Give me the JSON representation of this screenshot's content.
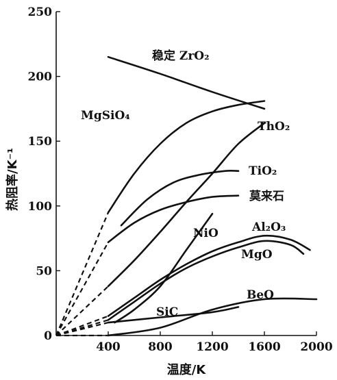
{
  "chart_data": {
    "type": "line",
    "xlabel": "温度/K",
    "ylabel": "热阻率/K⁻¹",
    "xlim": [
      0,
      2000
    ],
    "ylim": [
      0,
      250
    ],
    "x_ticks": [
      400,
      800,
      1200,
      1600,
      2000
    ],
    "y_ticks": [
      0,
      50,
      100,
      150,
      200,
      250
    ],
    "grid": false,
    "legend": "none (labels placed beside curves)",
    "series": [
      {
        "name": "稳定 ZrO₂",
        "points": [
          [
            400,
            215
          ],
          [
            800,
            202
          ],
          [
            1200,
            188
          ],
          [
            1600,
            175
          ]
        ],
        "dashed_extrapolation": []
      },
      {
        "name": "MgSiO₄",
        "points": [
          [
            400,
            95
          ],
          [
            600,
            125
          ],
          [
            800,
            148
          ],
          [
            1000,
            164
          ],
          [
            1200,
            173
          ],
          [
            1400,
            178
          ],
          [
            1600,
            181
          ]
        ],
        "dashed_extrapolation": [
          [
            0,
            0
          ],
          [
            400,
            95
          ]
        ]
      },
      {
        "name": "ThO₂",
        "points": [
          [
            400,
            38
          ],
          [
            600,
            58
          ],
          [
            800,
            80
          ],
          [
            1000,
            103
          ],
          [
            1200,
            125
          ],
          [
            1400,
            148
          ],
          [
            1600,
            164
          ]
        ],
        "dashed_extrapolation": [
          [
            0,
            0
          ],
          [
            400,
            38
          ]
        ]
      },
      {
        "name": "TiO₂",
        "points": [
          [
            500,
            85
          ],
          [
            700,
            105
          ],
          [
            900,
            118
          ],
          [
            1100,
            124
          ],
          [
            1300,
            127
          ],
          [
            1400,
            127
          ]
        ],
        "dashed_extrapolation": []
      },
      {
        "name": "莫来石",
        "points": [
          [
            400,
            72
          ],
          [
            600,
            87
          ],
          [
            800,
            97
          ],
          [
            1000,
            103
          ],
          [
            1200,
            107
          ],
          [
            1400,
            108
          ]
        ],
        "dashed_extrapolation": [
          [
            0,
            0
          ],
          [
            400,
            72
          ]
        ]
      },
      {
        "name": "NiO",
        "points": [
          [
            450,
            10
          ],
          [
            600,
            20
          ],
          [
            800,
            38
          ],
          [
            1000,
            66
          ],
          [
            1200,
            94
          ]
        ],
        "dashed_extrapolation": []
      },
      {
        "name": "Al₂O₃",
        "points": [
          [
            400,
            15
          ],
          [
            600,
            29
          ],
          [
            800,
            43
          ],
          [
            1000,
            55
          ],
          [
            1200,
            65
          ],
          [
            1400,
            72
          ],
          [
            1600,
            77
          ],
          [
            1800,
            74
          ],
          [
            1950,
            66
          ]
        ],
        "dashed_extrapolation": [
          [
            0,
            0
          ],
          [
            400,
            15
          ]
        ]
      },
      {
        "name": "MgO",
        "points": [
          [
            400,
            12
          ],
          [
            600,
            26
          ],
          [
            800,
            40
          ],
          [
            1000,
            52
          ],
          [
            1200,
            61
          ],
          [
            1400,
            68
          ],
          [
            1600,
            73
          ],
          [
            1800,
            70
          ],
          [
            1900,
            63
          ]
        ],
        "dashed_extrapolation": [
          [
            0,
            0
          ],
          [
            400,
            12
          ]
        ]
      },
      {
        "name": "BeO",
        "points": [
          [
            400,
            0
          ],
          [
            800,
            6
          ],
          [
            1200,
            20
          ],
          [
            1600,
            28
          ],
          [
            2000,
            28
          ]
        ],
        "dashed_extrapolation": [
          [
            0,
            0
          ],
          [
            400,
            0
          ]
        ]
      },
      {
        "name": "SiC",
        "points": [
          [
            400,
            10
          ],
          [
            800,
            14
          ],
          [
            1200,
            18
          ],
          [
            1400,
            22
          ]
        ],
        "dashed_extrapolation": [
          [
            0,
            0
          ],
          [
            400,
            10
          ]
        ]
      }
    ]
  }
}
